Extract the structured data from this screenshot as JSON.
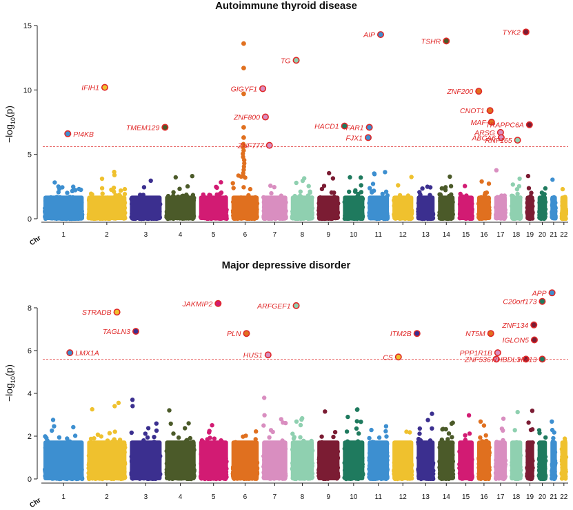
{
  "chart_data": [
    {
      "type": "scatter",
      "title": "Autoimmune thyroid disease",
      "ylabel": "−log10(p)",
      "xlabel": "Chr",
      "ylim": [
        0,
        15
      ],
      "yticks": [
        0,
        5,
        10,
        15
      ],
      "significance_line": 5.6,
      "chromosomes": [
        "1",
        "2",
        "3",
        "4",
        "5",
        "6",
        "7",
        "8",
        "9",
        "10",
        "11",
        "12",
        "13",
        "14",
        "15",
        "16",
        "17",
        "18",
        "19",
        "20",
        "21",
        "22"
      ],
      "chromosome_colors": [
        "#3d8fd0",
        "#efc12e",
        "#3b2f8f",
        "#4b5a29",
        "#d21b73",
        "#e0701f",
        "#d98ec0",
        "#8fd0b0",
        "#7b1c33",
        "#1f7a5e",
        "#3d8fd0",
        "#efc12e",
        "#3b2f8f",
        "#4b5a29",
        "#d21b73",
        "#e0701f",
        "#d98ec0",
        "#8fd0b0",
        "#7b1c33",
        "#1f7a5e",
        "#3d8fd0",
        "#efc12e"
      ],
      "annotated_points": [
        {
          "gene": "PI4KB",
          "chr": "1",
          "pos": 0.6,
          "y": 6.6
        },
        {
          "gene": "IFIH1",
          "chr": "2",
          "pos": 0.45,
          "y": 10.2
        },
        {
          "gene": "TMEM129",
          "chr": "4",
          "pos": 0.02,
          "y": 7.1
        },
        {
          "gene": "TG",
          "chr": "8",
          "pos": 0.25,
          "y": 12.3
        },
        {
          "gene": "GIGYF1",
          "chr": "7",
          "pos": 0.05,
          "y": 10.1
        },
        {
          "gene": "ZNF800",
          "chr": "7",
          "pos": 0.15,
          "y": 7.9
        },
        {
          "gene": "ZNF777",
          "chr": "7",
          "pos": 0.3,
          "y": 5.7
        },
        {
          "gene": "AIP",
          "chr": "11",
          "pos": 0.6,
          "y": 14.3
        },
        {
          "gene": "HACD1",
          "chr": "10",
          "pos": 0.1,
          "y": 7.2
        },
        {
          "gene": "FJX1",
          "chr": "11",
          "pos": 0.05,
          "y": 6.3
        },
        {
          "gene": "FAR1",
          "chr": "11",
          "pos": 0.1,
          "y": 7.1
        },
        {
          "gene": "TSHR",
          "chr": "14",
          "pos": 0.5,
          "y": 13.8
        },
        {
          "gene": "TYK2",
          "chr": "19",
          "pos": 0.1,
          "y": 14.5
        },
        {
          "gene": "ZNF200",
          "chr": "16",
          "pos": 0.15,
          "y": 9.9
        },
        {
          "gene": "CNOT1",
          "chr": "16",
          "pos": 0.9,
          "y": 8.4
        },
        {
          "gene": "MAF",
          "chr": "16",
          "pos": 1.1,
          "y": 7.5
        },
        {
          "gene": "ARSG",
          "chr": "17",
          "pos": 0.5,
          "y": 6.7
        },
        {
          "gene": "ABCA6",
          "chr": "17",
          "pos": 0.55,
          "y": 6.3
        },
        {
          "gene": "RNF165",
          "chr": "18",
          "pos": 0.6,
          "y": 6.1
        },
        {
          "gene": "TRAPPC6A",
          "chr": "19",
          "pos": 0.45,
          "y": 7.3
        }
      ],
      "tall_column": {
        "chr": "6",
        "values": [
          13.6,
          11.7,
          9.7,
          7.1,
          6.3,
          5.7
        ]
      }
    },
    {
      "type": "scatter",
      "title": "Major depressive disorder",
      "ylabel": "−log10(p)",
      "xlabel": "Chr",
      "ylim": [
        0,
        9
      ],
      "yticks": [
        0,
        2,
        4,
        6,
        8
      ],
      "significance_line": 5.6,
      "chromosomes": [
        "1",
        "2",
        "3",
        "4",
        "5",
        "6",
        "7",
        "8",
        "9",
        "10",
        "11",
        "12",
        "13",
        "14",
        "15",
        "16",
        "17",
        "18",
        "19",
        "20",
        "21",
        "22"
      ],
      "chromosome_colors": [
        "#3d8fd0",
        "#efc12e",
        "#3b2f8f",
        "#4b5a29",
        "#d21b73",
        "#e0701f",
        "#d98ec0",
        "#8fd0b0",
        "#7b1c33",
        "#1f7a5e",
        "#3d8fd0",
        "#efc12e",
        "#3b2f8f",
        "#4b5a29",
        "#d21b73",
        "#e0701f",
        "#d98ec0",
        "#8fd0b0",
        "#7b1c33",
        "#1f7a5e",
        "#3d8fd0",
        "#efc12e"
      ],
      "annotated_points": [
        {
          "gene": "LMX1A",
          "chr": "1",
          "pos": 0.65,
          "y": 5.9
        },
        {
          "gene": "STRADB",
          "chr": "2",
          "pos": 0.75,
          "y": 7.8
        },
        {
          "gene": "TAGLN3",
          "chr": "3",
          "pos": 0.2,
          "y": 6.9
        },
        {
          "gene": "JAKMIP2",
          "chr": "5",
          "pos": 0.65,
          "y": 8.2
        },
        {
          "gene": "PLN",
          "chr": "6",
          "pos": 0.55,
          "y": 6.8
        },
        {
          "gene": "ARFGEF1",
          "chr": "8",
          "pos": 0.25,
          "y": 8.1
        },
        {
          "gene": "HUS1",
          "chr": "7",
          "pos": 0.25,
          "y": 5.8
        },
        {
          "gene": "ITM2B",
          "chr": "13",
          "pos": 0.05,
          "y": 6.8
        },
        {
          "gene": "CS",
          "chr": "12",
          "pos": 0.3,
          "y": 5.7
        },
        {
          "gene": "NT5M",
          "chr": "16",
          "pos": 0.95,
          "y": 6.8
        },
        {
          "gene": "PPP1R1B",
          "chr": "17",
          "pos": 0.3,
          "y": 5.9
        },
        {
          "gene": "ZNF536",
          "chr": "17",
          "pos": 0.2,
          "y": 5.6
        },
        {
          "gene": "RHBDL3",
          "chr": "19",
          "pos": 0.1,
          "y": 5.6
        },
        {
          "gene": "HM13",
          "chr": "20",
          "pos": 0.5,
          "y": 5.6
        },
        {
          "gene": "APP",
          "chr": "21",
          "pos": 0.3,
          "y": 8.7
        },
        {
          "gene": "C20orf173",
          "chr": "20",
          "pos": 0.5,
          "y": 8.3
        },
        {
          "gene": "ZNF134",
          "chr": "19",
          "pos": 0.9,
          "y": 7.2
        },
        {
          "gene": "IGLON5",
          "chr": "19",
          "pos": 0.95,
          "y": 6.5
        }
      ],
      "tall_column": null
    }
  ]
}
